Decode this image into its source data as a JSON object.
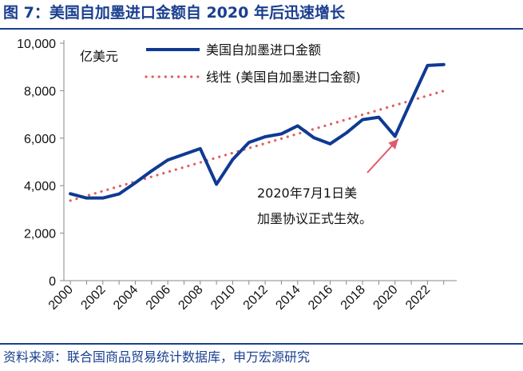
{
  "title": "图 7：美国自加墨进口金额自 2020 年后迅速增长",
  "source": "资料来源：联合国商品贸易统计数据库，申万宏源研究",
  "colors": {
    "main": "#0f3a93",
    "trend": "#e06060",
    "arrow": "#e05a6a",
    "heading": "#1a3f8f"
  },
  "chart_data": {
    "type": "line",
    "unit_label": "亿美元",
    "ylim": [
      0,
      10000
    ],
    "yticks": [
      0,
      2000,
      4000,
      6000,
      8000,
      10000
    ],
    "ytick_labels": [
      "0",
      "2,000",
      "4,000",
      "6,000",
      "8,000",
      "10,000"
    ],
    "xticks": [
      2000,
      2002,
      2004,
      2006,
      2008,
      2010,
      2012,
      2014,
      2016,
      2018,
      2020,
      2022
    ],
    "xtick_labels": [
      "2000",
      "2002",
      "2004",
      "2006",
      "2008",
      "2010",
      "2012",
      "2014",
      "2016",
      "2018",
      "2020",
      "2022"
    ],
    "grid": false,
    "legend_position": "top",
    "series": [
      {
        "name": "美国自加墨进口金额",
        "style": "solid",
        "x": [
          2000,
          2001,
          2002,
          2003,
          2004,
          2005,
          2006,
          2007,
          2008,
          2009,
          2010,
          2011,
          2012,
          2013,
          2014,
          2015,
          2016,
          2017,
          2018,
          2019,
          2020,
          2021,
          2022,
          2023
        ],
        "values": [
          3660,
          3480,
          3480,
          3650,
          4120,
          4620,
          5080,
          5320,
          5560,
          4060,
          5100,
          5820,
          6060,
          6180,
          6520,
          6020,
          5760,
          6220,
          6780,
          6880,
          6080,
          7580,
          9060,
          9100
        ]
      },
      {
        "name": "线性 (美国自加墨进口金额)",
        "style": "dotted",
        "x": [
          2000,
          2023
        ],
        "values": [
          3370,
          7990
        ]
      }
    ],
    "annotation": {
      "lines": [
        "2020年7月1日美",
        "加墨协议正式生效。"
      ],
      "arrow_to": {
        "x": 2020,
        "y": 6100
      }
    }
  }
}
